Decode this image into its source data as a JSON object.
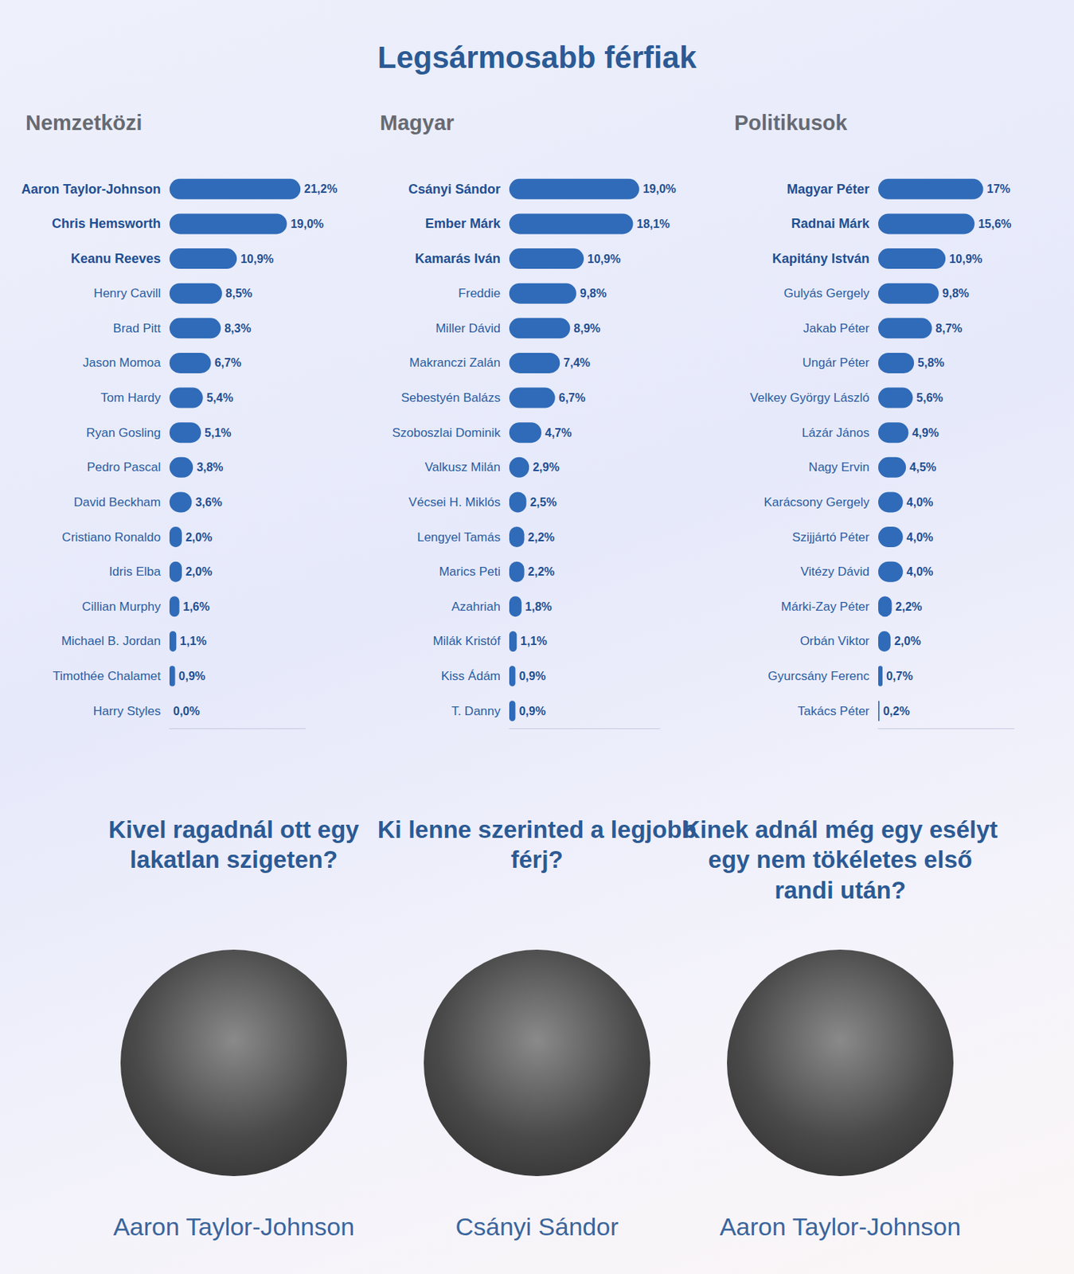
{
  "title": "Legsármosabb férfiak",
  "chart_data": [
    {
      "type": "bar",
      "title": "Nemzetközi",
      "orientation": "horizontal",
      "color": "#2f6bb8",
      "data_labels": true,
      "tick_labels": false,
      "xlim": [
        0,
        22
      ],
      "categories": [
        "Aaron Taylor-Johnson",
        "Chris Hemsworth",
        "Keanu Reeves",
        "Henry Cavill",
        "Brad Pitt",
        "Jason Momoa",
        "Tom Hardy",
        "Ryan Gosling",
        "Pedro Pascal",
        "David Beckham",
        "Cristiano Ronaldo",
        "Idris Elba",
        "Cillian Murphy",
        "Michael B. Jordan",
        "Timothée Chalamet",
        "Harry Styles"
      ],
      "values": [
        21.2,
        19.0,
        10.9,
        8.5,
        8.3,
        6.7,
        5.4,
        5.1,
        3.8,
        3.6,
        2.0,
        2.0,
        1.6,
        1.1,
        0.9,
        0.0
      ],
      "value_labels": [
        "21,2%",
        "19,0%",
        "10,9%",
        "8,5%",
        "8,3%",
        "6,7%",
        "5,4%",
        "5,1%",
        "3,8%",
        "3,6%",
        "2,0%",
        "2,0%",
        "1,6%",
        "1,1%",
        "0,9%",
        "0,0%"
      ]
    },
    {
      "type": "bar",
      "title": "Magyar",
      "orientation": "horizontal",
      "color": "#2f6bb8",
      "data_labels": true,
      "tick_labels": false,
      "xlim": [
        0,
        22
      ],
      "categories": [
        "Csányi Sándor",
        "Ember Márk",
        "Kamarás Iván",
        "Freddie",
        "Miller Dávid",
        "Makranczi Zalán",
        "Sebestyén Balázs",
        "Szoboszlai Dominik",
        "Valkusz Milán",
        "Vécsei H. Miklós",
        "Lengyel Tamás",
        "Marics Peti",
        "Azahriah",
        "Milák Kristóf",
        "Kiss Ádám",
        "T. Danny"
      ],
      "values": [
        19.0,
        18.1,
        10.9,
        9.8,
        8.9,
        7.4,
        6.7,
        4.7,
        2.9,
        2.5,
        2.2,
        2.2,
        1.8,
        1.1,
        0.9,
        0.9
      ],
      "value_labels": [
        "19,0%",
        "18,1%",
        "10,9%",
        "9,8%",
        "8,9%",
        "7,4%",
        "6,7%",
        "4,7%",
        "2,9%",
        "2,5%",
        "2,2%",
        "2,2%",
        "1,8%",
        "1,1%",
        "0,9%",
        "0,9%"
      ]
    },
    {
      "type": "bar",
      "title": "Politikusok",
      "orientation": "horizontal",
      "color": "#2f6bb8",
      "data_labels": true,
      "tick_labels": false,
      "xlim": [
        0,
        22
      ],
      "categories": [
        "Magyar Péter",
        "Radnai Márk",
        "Kapitány István",
        "Gulyás Gergely",
        "Jakab Péter",
        "Ungár Péter",
        "Velkey György László",
        "Lázár János",
        "Nagy Ervin",
        "Karácsony Gergely",
        "Szijjártó Péter",
        "Vitézy Dávid",
        "Márki-Zay Péter",
        "Orbán Viktor",
        "Gyurcsány Ferenc",
        "Takács Péter"
      ],
      "values": [
        17,
        15.6,
        10.9,
        9.8,
        8.7,
        5.8,
        5.6,
        4.9,
        4.5,
        4.0,
        4.0,
        4.0,
        2.2,
        2.0,
        0.7,
        0.2
      ],
      "value_labels": [
        "17%",
        "15,6%",
        "10,9%",
        "9,8%",
        "8,7%",
        "5,8%",
        "5,6%",
        "4,9%",
        "4,5%",
        "4,0%",
        "4,0%",
        "4,0%",
        "2,2%",
        "2,0%",
        "0,7%",
        "0,2%"
      ]
    }
  ],
  "questions": [
    {
      "question": "Kivel ragadnál ott egy lakatlan szigeten?",
      "answer": "Aaron Taylor-Johnson"
    },
    {
      "question": "Ki lenne szerinted a legjobb férj?",
      "answer": "Csányi Sándor"
    },
    {
      "question": "Kinek adnál még egy esélyt egy nem tökéletes első randi után?",
      "answer": "Aaron Taylor-Johnson"
    }
  ]
}
